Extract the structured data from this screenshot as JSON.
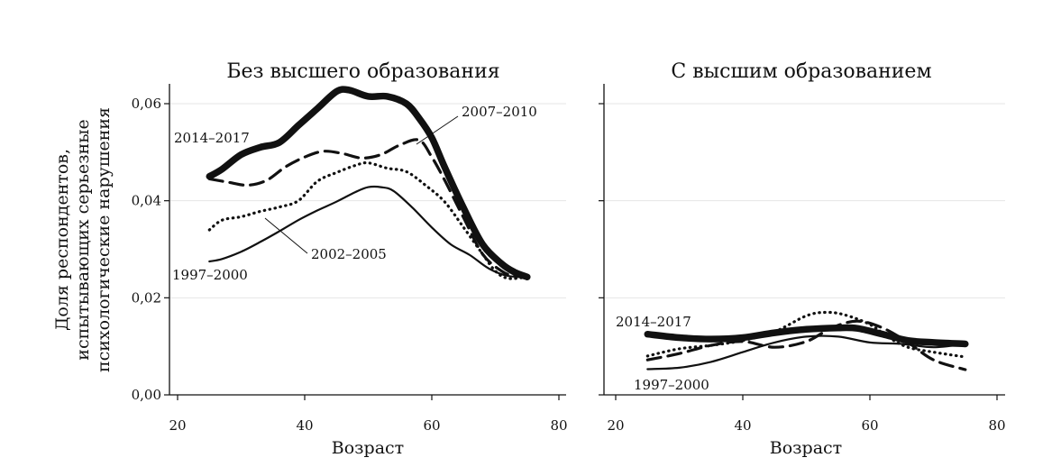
{
  "chart_data": [
    {
      "type": "line",
      "title": "Без высшего образования",
      "xlabel": "Возраст",
      "ylabel": [
        "Доля респондентов,",
        "испытывающих серьезные",
        "психологические нарушения"
      ],
      "xlim": [
        20,
        80
      ],
      "ylim": [
        0,
        0.063
      ],
      "xticks": [
        20,
        40,
        60,
        80
      ],
      "xtick_labels": [
        "20",
        "40",
        "60",
        "80"
      ],
      "yticks": [
        0,
        0.02,
        0.04,
        0.06
      ],
      "ytick_labels": [
        "0,00",
        "0,02",
        "0,04",
        "0,06"
      ],
      "grid": true,
      "series": [
        {
          "name": "1997–2000",
          "style": "solid-thin",
          "x": [
            25,
            27,
            30,
            33,
            36,
            39,
            42,
            45,
            48,
            50,
            52,
            54,
            57,
            60,
            63,
            66,
            69,
            72,
            75
          ],
          "y": [
            0.0275,
            0.028,
            0.0295,
            0.0315,
            0.0337,
            0.036,
            0.038,
            0.0398,
            0.0418,
            0.0428,
            0.0428,
            0.042,
            0.0385,
            0.0345,
            0.031,
            0.0288,
            0.026,
            0.0245,
            0.0243
          ]
        },
        {
          "name": "2002–2005",
          "style": "dotted",
          "x": [
            25,
            27,
            30,
            33,
            36,
            39,
            42,
            45,
            48,
            50,
            53,
            56,
            59,
            62,
            65,
            68,
            70,
            72,
            75
          ],
          "y": [
            0.034,
            0.036,
            0.0367,
            0.0378,
            0.0387,
            0.04,
            0.044,
            0.0458,
            0.0473,
            0.0478,
            0.0467,
            0.046,
            0.0432,
            0.0398,
            0.0345,
            0.029,
            0.0255,
            0.024,
            0.0243
          ]
        },
        {
          "name": "2007–2010",
          "style": "dashed",
          "x": [
            25,
            28,
            31,
            34,
            37,
            40,
            43,
            46,
            49,
            52,
            55,
            58,
            60,
            62,
            65,
            68,
            71,
            73,
            75
          ],
          "y": [
            0.0445,
            0.0438,
            0.0432,
            0.0442,
            0.047,
            0.049,
            0.0502,
            0.0497,
            0.0488,
            0.0495,
            0.0515,
            0.0525,
            0.049,
            0.0443,
            0.0365,
            0.029,
            0.0255,
            0.0245,
            0.0243
          ]
        },
        {
          "name": "2014–2017",
          "style": "solid-thick",
          "x": [
            25,
            27,
            30,
            33,
            36,
            39,
            42,
            45,
            47,
            50,
            53,
            56,
            58,
            60,
            62,
            65,
            68,
            71,
            73,
            75
          ],
          "y": [
            0.045,
            0.0465,
            0.0495,
            0.051,
            0.052,
            0.0555,
            0.059,
            0.0625,
            0.0628,
            0.0615,
            0.0615,
            0.06,
            0.057,
            0.053,
            0.047,
            0.0385,
            0.031,
            0.027,
            0.0253,
            0.0243
          ]
        }
      ],
      "annotations": [
        {
          "text": "2014–2017",
          "series": "2014–2017"
        },
        {
          "text": "2007–2010",
          "series": "2007–2010"
        },
        {
          "text": "2002–2005",
          "series": "2002–2005"
        },
        {
          "text": "1997–2000",
          "series": "1997–2000"
        }
      ]
    },
    {
      "type": "line",
      "title": "С высшим образованием",
      "xlabel": "Возраст",
      "ylabel": "",
      "xlim": [
        20,
        80
      ],
      "ylim": [
        0,
        0.063
      ],
      "xticks": [
        20,
        40,
        60,
        80
      ],
      "xtick_labels": [
        "20",
        "40",
        "60",
        "80"
      ],
      "yticks": [
        0,
        0.02,
        0.04,
        0.06
      ],
      "ytick_labels": [
        "",
        "",
        "",
        ""
      ],
      "grid": true,
      "series": [
        {
          "name": "1997–2000",
          "style": "solid-thin",
          "x": [
            25,
            30,
            35,
            40,
            45,
            50,
            55,
            60,
            65,
            70,
            75
          ],
          "y": [
            0.0053,
            0.0056,
            0.0068,
            0.0088,
            0.0108,
            0.012,
            0.012,
            0.0108,
            0.0105,
            0.0098,
            0.0105
          ]
        },
        {
          "name": "2002–2005",
          "style": "dotted",
          "x": [
            25,
            30,
            35,
            40,
            45,
            50,
            53,
            56,
            60,
            63,
            66,
            70,
            75
          ],
          "y": [
            0.008,
            0.0095,
            0.0102,
            0.0112,
            0.013,
            0.0163,
            0.017,
            0.0165,
            0.0145,
            0.0118,
            0.0098,
            0.0088,
            0.0078
          ]
        },
        {
          "name": "2007–2010",
          "style": "dashed",
          "x": [
            25,
            30,
            35,
            40,
            45,
            50,
            54,
            58,
            62,
            66,
            70,
            75
          ],
          "y": [
            0.0072,
            0.0085,
            0.0102,
            0.011,
            0.0098,
            0.011,
            0.0138,
            0.0152,
            0.0138,
            0.0108,
            0.0072,
            0.0052
          ]
        },
        {
          "name": "2014–2017",
          "style": "solid-thick",
          "x": [
            25,
            30,
            35,
            40,
            45,
            50,
            55,
            58,
            62,
            66,
            70,
            75
          ],
          "y": [
            0.0125,
            0.0118,
            0.0115,
            0.0118,
            0.0128,
            0.0135,
            0.0138,
            0.0137,
            0.0125,
            0.0112,
            0.0108,
            0.0105
          ]
        }
      ],
      "annotations": [
        {
          "text": "2014–2017",
          "series": "2014–2017"
        },
        {
          "text": "1997–2000",
          "series": "1997–2000"
        }
      ]
    }
  ]
}
